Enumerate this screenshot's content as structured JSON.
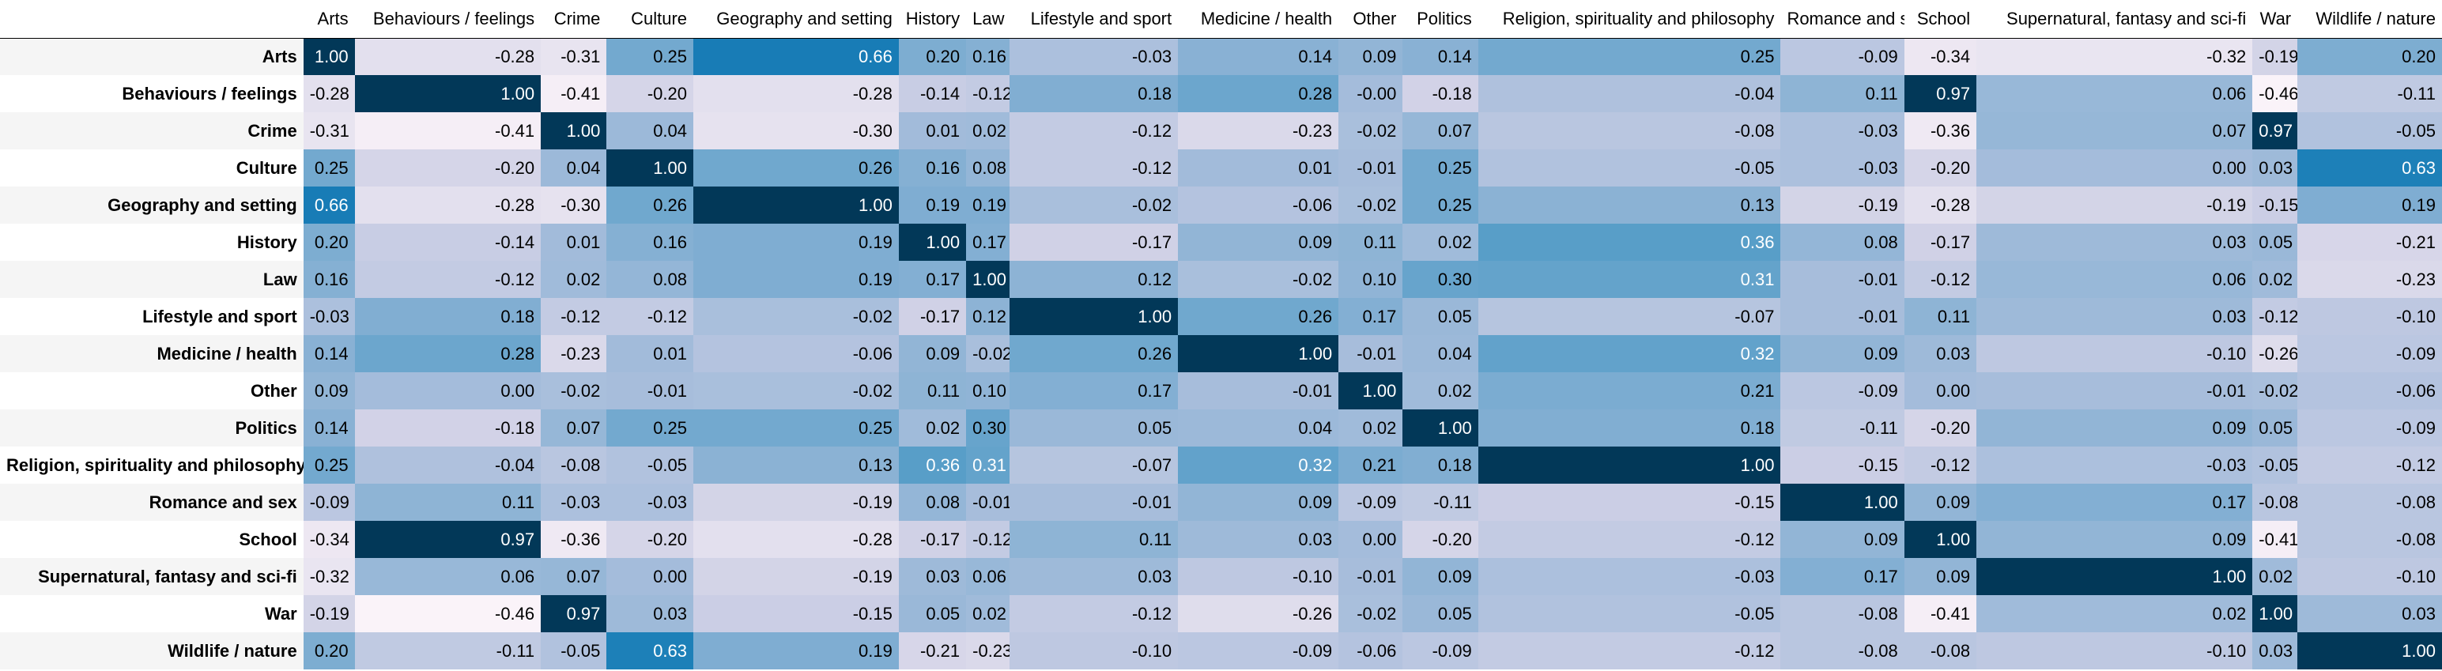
{
  "chart_data": {
    "type": "heatmap",
    "title": "",
    "color_scale": {
      "low": "#fff7fb",
      "high": "#023858",
      "range": [
        -0.5,
        1.0
      ]
    },
    "categories": [
      "Arts",
      "Behaviours / feelings",
      "Crime",
      "Culture",
      "Geography and setting",
      "History",
      "Law",
      "Lifestyle and sport",
      "Medicine / health",
      "Other",
      "Politics",
      "Religion, spirituality and philosophy",
      "Romance and sex",
      "School",
      "Supernatural, fantasy and sci-fi",
      "War",
      "Wildlife / nature"
    ],
    "values": [
      [
        1.0,
        -0.28,
        -0.31,
        0.25,
        0.66,
        0.2,
        0.16,
        -0.03,
        0.14,
        0.09,
        0.14,
        0.25,
        -0.09,
        -0.34,
        -0.32,
        -0.19,
        0.2
      ],
      [
        -0.28,
        1.0,
        -0.41,
        -0.2,
        -0.28,
        -0.14,
        -0.12,
        0.18,
        0.28,
        -0.0,
        -0.18,
        -0.04,
        0.11,
        0.97,
        0.06,
        -0.46,
        -0.11
      ],
      [
        -0.31,
        -0.41,
        1.0,
        0.04,
        -0.3,
        0.01,
        0.02,
        -0.12,
        -0.23,
        -0.02,
        0.07,
        -0.08,
        -0.03,
        -0.36,
        0.07,
        0.97,
        -0.05
      ],
      [
        0.25,
        -0.2,
        0.04,
        1.0,
        0.26,
        0.16,
        0.08,
        -0.12,
        0.01,
        -0.01,
        0.25,
        -0.05,
        -0.03,
        -0.2,
        0.0,
        0.03,
        0.63
      ],
      [
        0.66,
        -0.28,
        -0.3,
        0.26,
        1.0,
        0.19,
        0.19,
        -0.02,
        -0.06,
        -0.02,
        0.25,
        0.13,
        -0.19,
        -0.28,
        -0.19,
        -0.15,
        0.19
      ],
      [
        0.2,
        -0.14,
        0.01,
        0.16,
        0.19,
        1.0,
        0.17,
        -0.17,
        0.09,
        0.11,
        0.02,
        0.36,
        0.08,
        -0.17,
        0.03,
        0.05,
        -0.21
      ],
      [
        0.16,
        -0.12,
        0.02,
        0.08,
        0.19,
        0.17,
        1.0,
        0.12,
        -0.02,
        0.1,
        0.3,
        0.31,
        -0.01,
        -0.12,
        0.06,
        0.02,
        -0.23
      ],
      [
        -0.03,
        0.18,
        -0.12,
        -0.12,
        -0.02,
        -0.17,
        0.12,
        1.0,
        0.26,
        0.17,
        0.05,
        -0.07,
        -0.01,
        0.11,
        0.03,
        -0.12,
        -0.1
      ],
      [
        0.14,
        0.28,
        -0.23,
        0.01,
        -0.06,
        0.09,
        -0.02,
        0.26,
        1.0,
        -0.01,
        0.04,
        0.32,
        0.09,
        0.03,
        -0.1,
        -0.26,
        -0.09
      ],
      [
        0.09,
        -0.0,
        -0.02,
        -0.01,
        -0.02,
        0.11,
        0.1,
        0.17,
        -0.01,
        1.0,
        0.02,
        0.21,
        -0.09,
        0.0,
        -0.01,
        -0.02,
        -0.06
      ],
      [
        0.14,
        -0.18,
        0.07,
        0.25,
        0.25,
        0.02,
        0.3,
        0.05,
        0.04,
        0.02,
        1.0,
        0.18,
        -0.11,
        -0.2,
        0.09,
        0.05,
        -0.09
      ],
      [
        0.25,
        -0.04,
        -0.08,
        -0.05,
        0.13,
        0.36,
        0.31,
        -0.07,
        0.32,
        0.21,
        0.18,
        1.0,
        -0.15,
        -0.12,
        -0.03,
        -0.05,
        -0.12
      ],
      [
        -0.09,
        0.11,
        -0.03,
        -0.03,
        -0.19,
        0.08,
        -0.01,
        -0.01,
        0.09,
        -0.09,
        -0.11,
        -0.15,
        1.0,
        0.09,
        0.17,
        -0.08,
        -0.08
      ],
      [
        -0.34,
        0.97,
        -0.36,
        -0.2,
        -0.28,
        -0.17,
        -0.12,
        0.11,
        0.03,
        0.0,
        -0.2,
        -0.12,
        0.09,
        1.0,
        0.09,
        -0.41,
        -0.08
      ],
      [
        -0.32,
        0.06,
        0.07,
        0.0,
        -0.19,
        0.03,
        0.06,
        0.03,
        -0.1,
        -0.01,
        0.09,
        -0.03,
        0.17,
        0.09,
        1.0,
        0.02,
        -0.1
      ],
      [
        -0.19,
        -0.46,
        0.97,
        0.03,
        -0.15,
        0.05,
        0.02,
        -0.12,
        -0.26,
        -0.02,
        0.05,
        -0.05,
        -0.08,
        -0.41,
        0.02,
        1.0,
        0.03
      ],
      [
        0.2,
        -0.11,
        -0.05,
        0.63,
        0.19,
        -0.21,
        -0.23,
        -0.1,
        -0.09,
        -0.06,
        -0.09,
        -0.12,
        -0.08,
        -0.08,
        -0.1,
        0.03,
        1.0
      ]
    ]
  }
}
